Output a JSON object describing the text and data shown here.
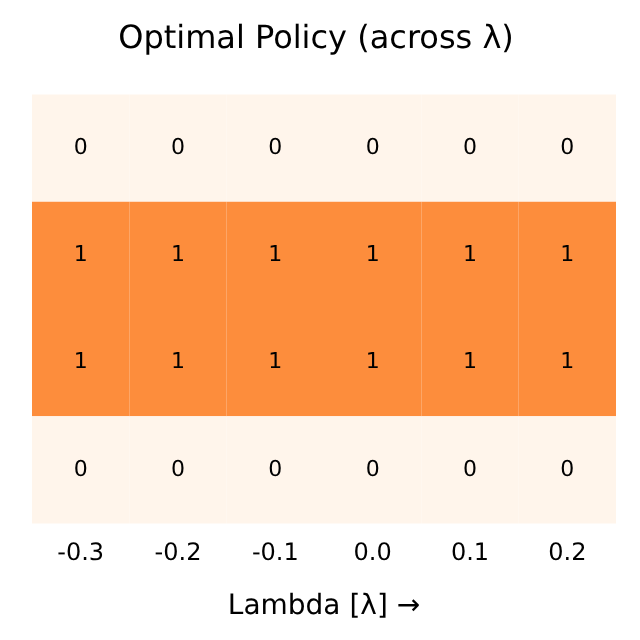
{
  "chart_data": {
    "type": "heatmap",
    "title": "Optimal Policy (across λ)",
    "xlabel": "Lambda [λ] →",
    "categories": [
      "-0.3",
      "-0.2",
      "-0.1",
      "0.0",
      "0.1",
      "0.2"
    ],
    "y_categories": [
      null,
      null,
      null,
      null
    ],
    "cells": [
      [
        0,
        0,
        0,
        0,
        0,
        0
      ],
      [
        1,
        1,
        1,
        1,
        1,
        1
      ],
      [
        1,
        1,
        1,
        1,
        1,
        1
      ],
      [
        0,
        0,
        0,
        0,
        0,
        0
      ]
    ],
    "data_labels": true
  }
}
